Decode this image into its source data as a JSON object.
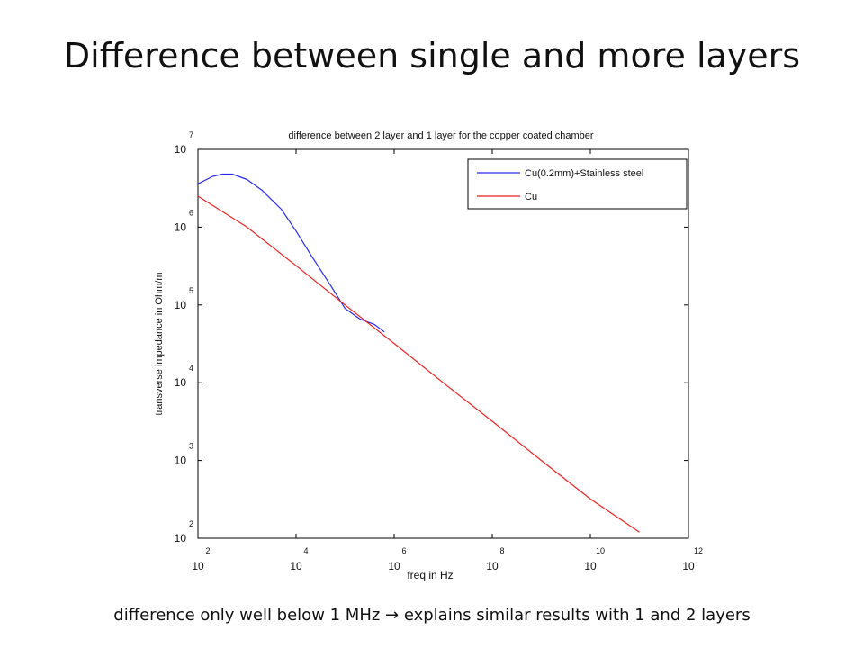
{
  "slide": {
    "title": "Difference between single and more layers",
    "caption": "difference only well below 1 MHz → explains similar results with 1 and 2 layers"
  },
  "chart_data": {
    "type": "line",
    "title": "difference between 2 layer and 1 layer for the copper coated chamber",
    "xlabel": "freq in Hz",
    "ylabel": "transverse impedance in Ohm/m",
    "x_scale": "log",
    "y_scale": "log",
    "xlim": [
      100,
      1000000000000
    ],
    "ylim": [
      100,
      10000000
    ],
    "x_ticks": [
      {
        "value": 100,
        "base": "10",
        "exp": "2"
      },
      {
        "value": 10000,
        "base": "10",
        "exp": "4"
      },
      {
        "value": 1000000,
        "base": "10",
        "exp": "6"
      },
      {
        "value": 100000000,
        "base": "10",
        "exp": "8"
      },
      {
        "value": 10000000000,
        "base": "10",
        "exp": "10"
      },
      {
        "value": 1000000000000,
        "base": "10",
        "exp": "12"
      }
    ],
    "y_ticks": [
      {
        "value": 100,
        "base": "10",
        "exp": "2"
      },
      {
        "value": 1000,
        "base": "10",
        "exp": "3"
      },
      {
        "value": 10000,
        "base": "10",
        "exp": "4"
      },
      {
        "value": 100000,
        "base": "10",
        "exp": "5"
      },
      {
        "value": 1000000,
        "base": "10",
        "exp": "6"
      },
      {
        "value": 10000000,
        "base": "10",
        "exp": "7"
      }
    ],
    "grid": false,
    "legend_position": "top-right",
    "series": [
      {
        "name": "Cu(0.2mm)+Stainless steel",
        "color": "#2a2af0",
        "x": [
          100,
          200,
          316,
          500,
          1000,
          2000,
          5000,
          10000,
          20000,
          50000,
          100000,
          200000,
          400000,
          631000
        ],
        "y": [
          3600000,
          4500000,
          4800000,
          4800000,
          4100000,
          3000000,
          1700000,
          890000,
          440000,
          180000,
          90000,
          66000,
          56000,
          45000
        ]
      },
      {
        "name": "Cu",
        "color": "#ee2222",
        "x": [
          100,
          1000,
          10000,
          100000,
          1000000,
          10000000,
          100000000,
          1000000000,
          10000000000,
          100000000000
        ],
        "y": [
          2500000,
          1000000,
          320000,
          100000,
          32000,
          10000,
          3200,
          1000,
          320,
          120
        ]
      }
    ]
  }
}
